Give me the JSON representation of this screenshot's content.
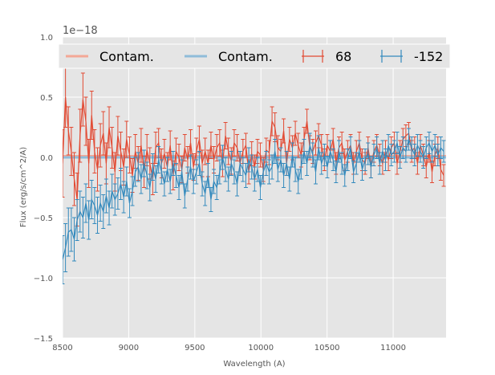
{
  "chart_data": {
    "type": "line",
    "title": "",
    "xlabel": "Wavelength (A)",
    "ylabel": "Flux (erg/s/cm^2/A)",
    "y_offset_label": "1e−18",
    "y_scale": 1e-18,
    "xlim": [
      8500,
      11400
    ],
    "ylim": [
      -1.5,
      1.0
    ],
    "xticks": [
      8500,
      9000,
      9500,
      10000,
      10500,
      11000
    ],
    "xtick_labels": [
      "8500",
      "9000",
      "9500",
      "10000",
      "10500",
      "11000"
    ],
    "yticks": [
      -1.5,
      -1.0,
      -0.5,
      0.0,
      0.5,
      1.0
    ],
    "ytick_labels": [
      "−1.5",
      "−1.0",
      "−0.5",
      "0.0",
      "0.5",
      "1.0"
    ],
    "grid": true,
    "legend_location": "top, spanning width",
    "legend": [
      {
        "label": "Contam.",
        "kind": "line"
      },
      {
        "label": "Contam.",
        "kind": "line"
      },
      {
        "label": "68",
        "kind": "errorbar"
      },
      {
        "label": "-152",
        "kind": "errorbar"
      }
    ],
    "series": [
      {
        "name": "Contam.",
        "kind": "line",
        "color": "#f4a896",
        "x": [
          8500,
          11400
        ],
        "y": [
          0.01,
          0.01
        ]
      },
      {
        "name": "Contam.",
        "kind": "line",
        "color": "#8fbcd9",
        "x": [
          8500,
          11400
        ],
        "y": [
          0.0,
          0.0
        ]
      },
      {
        "name": "68",
        "kind": "errorbar",
        "color": "#e24a33",
        "x": [
          8500,
          8522,
          8544,
          8566,
          8588,
          8610,
          8632,
          8654,
          8676,
          8698,
          8720,
          8742,
          8764,
          8786,
          8808,
          8830,
          8852,
          8874,
          8896,
          8918,
          8940,
          8962,
          8984,
          9006,
          9028,
          9050,
          9072,
          9094,
          9116,
          9138,
          9160,
          9182,
          9204,
          9226,
          9248,
          9270,
          9292,
          9314,
          9336,
          9358,
          9380,
          9402,
          9424,
          9446,
          9468,
          9490,
          9512,
          9534,
          9556,
          9578,
          9600,
          9622,
          9644,
          9666,
          9688,
          9710,
          9732,
          9754,
          9776,
          9798,
          9820,
          9842,
          9864,
          9886,
          9908,
          9930,
          9952,
          9974,
          9996,
          10018,
          10040,
          10062,
          10084,
          10106,
          10128,
          10150,
          10172,
          10194,
          10216,
          10238,
          10260,
          10282,
          10304,
          10326,
          10348,
          10370,
          10392,
          10414,
          10436,
          10458,
          10480,
          10502,
          10524,
          10546,
          10568,
          10590,
          10612,
          10634,
          10656,
          10678,
          10700,
          10722,
          10744,
          10766,
          10788,
          10810,
          10832,
          10854,
          10876,
          10898,
          10920,
          10942,
          10964,
          10986,
          11008,
          11030,
          11052,
          11074,
          11096,
          11118,
          11140,
          11162,
          11184,
          11206,
          11228,
          11250,
          11272,
          11294,
          11316,
          11338,
          11360,
          11382
        ],
        "y": [
          -0.05,
          0.5,
          0.22,
          0.05,
          -0.18,
          -0.35,
          0.18,
          0.48,
          0.3,
          -0.05,
          0.35,
          0.05,
          -0.1,
          0.1,
          0.2,
          -0.05,
          0.25,
          0.08,
          -0.12,
          0.18,
          0.05,
          -0.08,
          0.15,
          0.02,
          -0.15,
          0.05,
          -0.05,
          0.1,
          -0.12,
          0.06,
          -0.05,
          -0.18,
          0.08,
          0.12,
          -0.05,
          0.03,
          -0.08,
          0.1,
          -0.15,
          0.05,
          0.0,
          -0.1,
          0.08,
          -0.02,
          0.12,
          -0.08,
          0.05,
          0.15,
          -0.05,
          0.05,
          -0.05,
          0.1,
          -0.02,
          0.08,
          0.12,
          -0.05,
          0.18,
          0.05,
          -0.03,
          0.12,
          0.08,
          -0.05,
          0.05,
          0.1,
          -0.12,
          0.03,
          -0.08,
          0.05,
          0.02,
          -0.1,
          0.06,
          0.04,
          0.3,
          0.25,
          0.08,
          0.05,
          0.22,
          -0.05,
          0.15,
          0.08,
          0.2,
          0.1,
          0.02,
          0.15,
          0.3,
          0.08,
          0.05,
          0.12,
          0.18,
          0.1,
          -0.02,
          0.1,
          0.05,
          0.15,
          -0.05,
          0.08,
          0.12,
          -0.02,
          0.05,
          0.1,
          -0.05,
          0.05,
          0.12,
          -0.02,
          -0.05,
          0.08,
          -0.08,
          0.05,
          0.1,
          0.02,
          -0.05,
          0.05,
          -0.02,
          0.08,
          0.12,
          -0.05,
          0.05,
          0.15,
          0.18,
          0.2,
          0.05,
          0.08,
          -0.05,
          0.1,
          0.02,
          -0.08,
          0.05,
          -0.12,
          0.02,
          0.08,
          -0.1,
          -0.15
        ],
        "err": [
          0.28,
          0.25,
          0.2,
          0.2,
          0.22,
          0.22,
          0.22,
          0.22,
          0.2,
          0.2,
          0.2,
          0.18,
          0.18,
          0.18,
          0.18,
          0.17,
          0.17,
          0.17,
          0.16,
          0.16,
          0.16,
          0.15,
          0.15,
          0.15,
          0.14,
          0.14,
          0.14,
          0.14,
          0.13,
          0.13,
          0.13,
          0.13,
          0.13,
          0.12,
          0.12,
          0.12,
          0.12,
          0.12,
          0.12,
          0.11,
          0.11,
          0.11,
          0.11,
          0.11,
          0.11,
          0.11,
          0.11,
          0.11,
          0.11,
          0.11,
          0.11,
          0.11,
          0.11,
          0.11,
          0.11,
          0.11,
          0.11,
          0.11,
          0.11,
          0.11,
          0.11,
          0.1,
          0.1,
          0.1,
          0.1,
          0.1,
          0.1,
          0.1,
          0.1,
          0.1,
          0.1,
          0.1,
          0.12,
          0.12,
          0.1,
          0.1,
          0.1,
          0.1,
          0.1,
          0.1,
          0.1,
          0.1,
          0.1,
          0.1,
          0.1,
          0.1,
          0.1,
          0.1,
          0.1,
          0.09,
          0.09,
          0.09,
          0.09,
          0.09,
          0.09,
          0.09,
          0.09,
          0.09,
          0.09,
          0.09,
          0.09,
          0.09,
          0.09,
          0.09,
          0.09,
          0.09,
          0.09,
          0.09,
          0.09,
          0.09,
          0.09,
          0.09,
          0.09,
          0.09,
          0.09,
          0.09,
          0.09,
          0.09,
          0.09,
          0.09,
          0.09,
          0.09,
          0.09,
          0.09,
          0.09,
          0.09,
          0.09,
          0.09,
          0.09,
          0.09,
          0.09,
          0.09
        ]
      },
      {
        "name": "-152",
        "kind": "errorbar",
        "color": "#348abd",
        "x": [
          8500,
          8522,
          8544,
          8566,
          8588,
          8610,
          8632,
          8654,
          8676,
          8698,
          8720,
          8742,
          8764,
          8786,
          8808,
          8830,
          8852,
          8874,
          8896,
          8918,
          8940,
          8962,
          8984,
          9006,
          9028,
          9050,
          9072,
          9094,
          9116,
          9138,
          9160,
          9182,
          9204,
          9226,
          9248,
          9270,
          9292,
          9314,
          9336,
          9358,
          9380,
          9402,
          9424,
          9446,
          9468,
          9490,
          9512,
          9534,
          9556,
          9578,
          9600,
          9622,
          9644,
          9666,
          9688,
          9710,
          9732,
          9754,
          9776,
          9798,
          9820,
          9842,
          9864,
          9886,
          9908,
          9930,
          9952,
          9974,
          9996,
          10018,
          10040,
          10062,
          10084,
          10106,
          10128,
          10150,
          10172,
          10194,
          10216,
          10238,
          10260,
          10282,
          10304,
          10326,
          10348,
          10370,
          10392,
          10414,
          10436,
          10458,
          10480,
          10502,
          10524,
          10546,
          10568,
          10590,
          10612,
          10634,
          10656,
          10678,
          10700,
          10722,
          10744,
          10766,
          10788,
          10810,
          10832,
          10854,
          10876,
          10898,
          10920,
          10942,
          10964,
          10986,
          11008,
          11030,
          11052,
          11074,
          11096,
          11118,
          11140,
          11162,
          11184,
          11206,
          11228,
          11250,
          11272,
          11294,
          11316,
          11338,
          11360,
          11382
        ],
        "y": [
          -0.85,
          -0.75,
          -0.62,
          -0.6,
          -0.68,
          -0.52,
          -0.45,
          -0.5,
          -0.38,
          -0.52,
          -0.35,
          -0.4,
          -0.48,
          -0.38,
          -0.45,
          -0.32,
          -0.42,
          -0.28,
          -0.35,
          -0.3,
          -0.22,
          -0.33,
          -0.2,
          -0.38,
          -0.28,
          -0.12,
          -0.08,
          -0.18,
          -0.05,
          -0.15,
          -0.25,
          -0.08,
          -0.18,
          -0.02,
          -0.12,
          -0.22,
          -0.1,
          -0.2,
          -0.05,
          -0.15,
          -0.25,
          -0.12,
          -0.32,
          -0.18,
          -0.08,
          -0.2,
          -0.12,
          -0.05,
          -0.22,
          -0.3,
          -0.15,
          -0.35,
          -0.2,
          -0.25,
          -0.12,
          0.0,
          -0.1,
          -0.18,
          -0.05,
          -0.12,
          -0.22,
          -0.05,
          -0.1,
          -0.15,
          -0.02,
          -0.08,
          -0.18,
          -0.1,
          -0.25,
          -0.12,
          -0.05,
          -0.12,
          -0.08,
          0.05,
          -0.1,
          -0.02,
          -0.15,
          -0.05,
          -0.18,
          0.02,
          -0.1,
          -0.2,
          -0.08,
          0.05,
          -0.05,
          0.1,
          0.02,
          -0.12,
          0.08,
          -0.05,
          0.02,
          -0.08,
          0.05,
          -0.02,
          -0.12,
          0.05,
          -0.05,
          -0.15,
          -0.02,
          0.08,
          -0.12,
          -0.05,
          0.05,
          -0.1,
          -0.02,
          0.03,
          -0.08,
          0.02,
          0.08,
          -0.05,
          0.05,
          -0.02,
          0.1,
          0.02,
          0.05,
          0.12,
          0.0,
          0.08,
          0.05,
          0.15,
          0.08,
          0.02,
          0.1,
          0.05,
          0.0,
          0.08,
          0.12,
          0.05,
          0.1,
          0.02,
          0.08,
          0.05
        ],
        "err": [
          0.2,
          0.2,
          0.2,
          0.18,
          0.18,
          0.17,
          0.17,
          0.17,
          0.16,
          0.16,
          0.16,
          0.15,
          0.15,
          0.15,
          0.14,
          0.14,
          0.14,
          0.14,
          0.13,
          0.13,
          0.13,
          0.13,
          0.12,
          0.12,
          0.12,
          0.12,
          0.12,
          0.12,
          0.11,
          0.11,
          0.11,
          0.11,
          0.11,
          0.11,
          0.1,
          0.1,
          0.1,
          0.1,
          0.1,
          0.1,
          0.1,
          0.1,
          0.1,
          0.1,
          0.1,
          0.1,
          0.1,
          0.1,
          0.1,
          0.1,
          0.1,
          0.1,
          0.1,
          0.1,
          0.1,
          0.1,
          0.1,
          0.1,
          0.1,
          0.1,
          0.1,
          0.1,
          0.1,
          0.1,
          0.1,
          0.1,
          0.1,
          0.1,
          0.1,
          0.1,
          0.1,
          0.1,
          0.1,
          0.1,
          0.1,
          0.1,
          0.1,
          0.1,
          0.1,
          0.1,
          0.1,
          0.1,
          0.1,
          0.1,
          0.1,
          0.1,
          0.1,
          0.1,
          0.1,
          0.09,
          0.09,
          0.09,
          0.09,
          0.09,
          0.09,
          0.09,
          0.09,
          0.09,
          0.09,
          0.09,
          0.09,
          0.09,
          0.09,
          0.09,
          0.09,
          0.09,
          0.09,
          0.09,
          0.09,
          0.09,
          0.09,
          0.09,
          0.09,
          0.09,
          0.09,
          0.09,
          0.09,
          0.09,
          0.09,
          0.09,
          0.09,
          0.09,
          0.09,
          0.09,
          0.09,
          0.09,
          0.09,
          0.09,
          0.09,
          0.09,
          0.09,
          0.09
        ]
      }
    ]
  }
}
